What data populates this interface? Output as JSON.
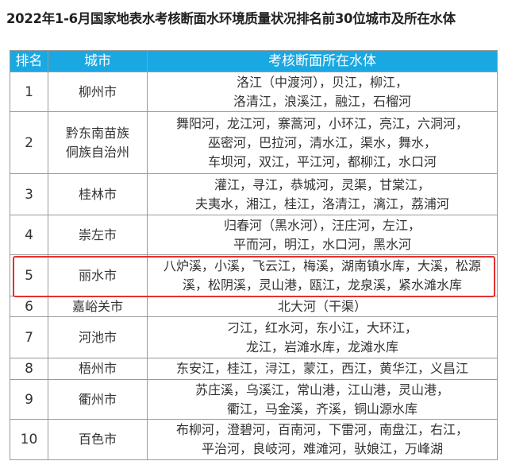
{
  "title": "2022年1-6月国家地表水考核断面水环境质量状况排名前30位城市及所在水体",
  "headers": {
    "rank": "排名",
    "city": "城市",
    "water": "考核断面所在水体"
  },
  "header_color": "#1aa8e2",
  "highlight_color": "#e53030",
  "highlighted_rank": "5",
  "rows": [
    {
      "rank": "1",
      "city": [
        "柳州市"
      ],
      "water": [
        "洛江（中渡河），贝江，柳江，",
        "洛清江，浪溪江，融江，石榴河"
      ]
    },
    {
      "rank": "2",
      "city": [
        "黔东南苗族",
        "侗族自治州"
      ],
      "water": [
        "舞阳河，龙江河，寨蒿河，小环江，亮江，六洞河，",
        "巫密河，巴拉河，清水江，渠水，舞水，",
        "车坝河，双江，平江河，都柳江，水口河"
      ]
    },
    {
      "rank": "3",
      "city": [
        "桂林市"
      ],
      "water": [
        "灌江，寻江，恭城河，灵渠，甘棠江，",
        "夫夷水，湘江，桂江，洛清江，漓江，荔浦河"
      ]
    },
    {
      "rank": "4",
      "city": [
        "崇左市"
      ],
      "water": [
        "归春河（黑水河），汪庄河，左江，",
        "平而河，明江，水口河，黑水河"
      ]
    },
    {
      "rank": "5",
      "city": [
        "丽水市"
      ],
      "water": [
        "八炉溪，小溪，飞云江，梅溪，湖南镇水库，大溪，松源",
        "溪，松阴溪，灵山港，瓯江，龙泉溪，紧水滩水库"
      ]
    },
    {
      "rank": "6",
      "city": [
        "嘉峪关市"
      ],
      "water": [
        "北大河（干渠）"
      ]
    },
    {
      "rank": "7",
      "city": [
        "河池市"
      ],
      "water": [
        "刁江，红水河，东小江，大环江，",
        "龙江，岩滩水库，龙滩水库"
      ]
    },
    {
      "rank": "8",
      "city": [
        "梧州市"
      ],
      "water": [
        "东安江，桂江，浔江，蒙江，西江，黄华江，义昌江"
      ]
    },
    {
      "rank": "9",
      "city": [
        "衢州市"
      ],
      "water": [
        "苏庄溪，乌溪江，常山港，江山港，灵山港，",
        "衢江，马金溪，齐溪，铜山源水库"
      ]
    },
    {
      "rank": "10",
      "city": [
        "百色市"
      ],
      "water": [
        "布柳河，澄碧河，百南河，下雷河，南盘江，右江，",
        "平治河，良岐河，难滩河，驮娘江，万峰湖"
      ]
    }
  ]
}
